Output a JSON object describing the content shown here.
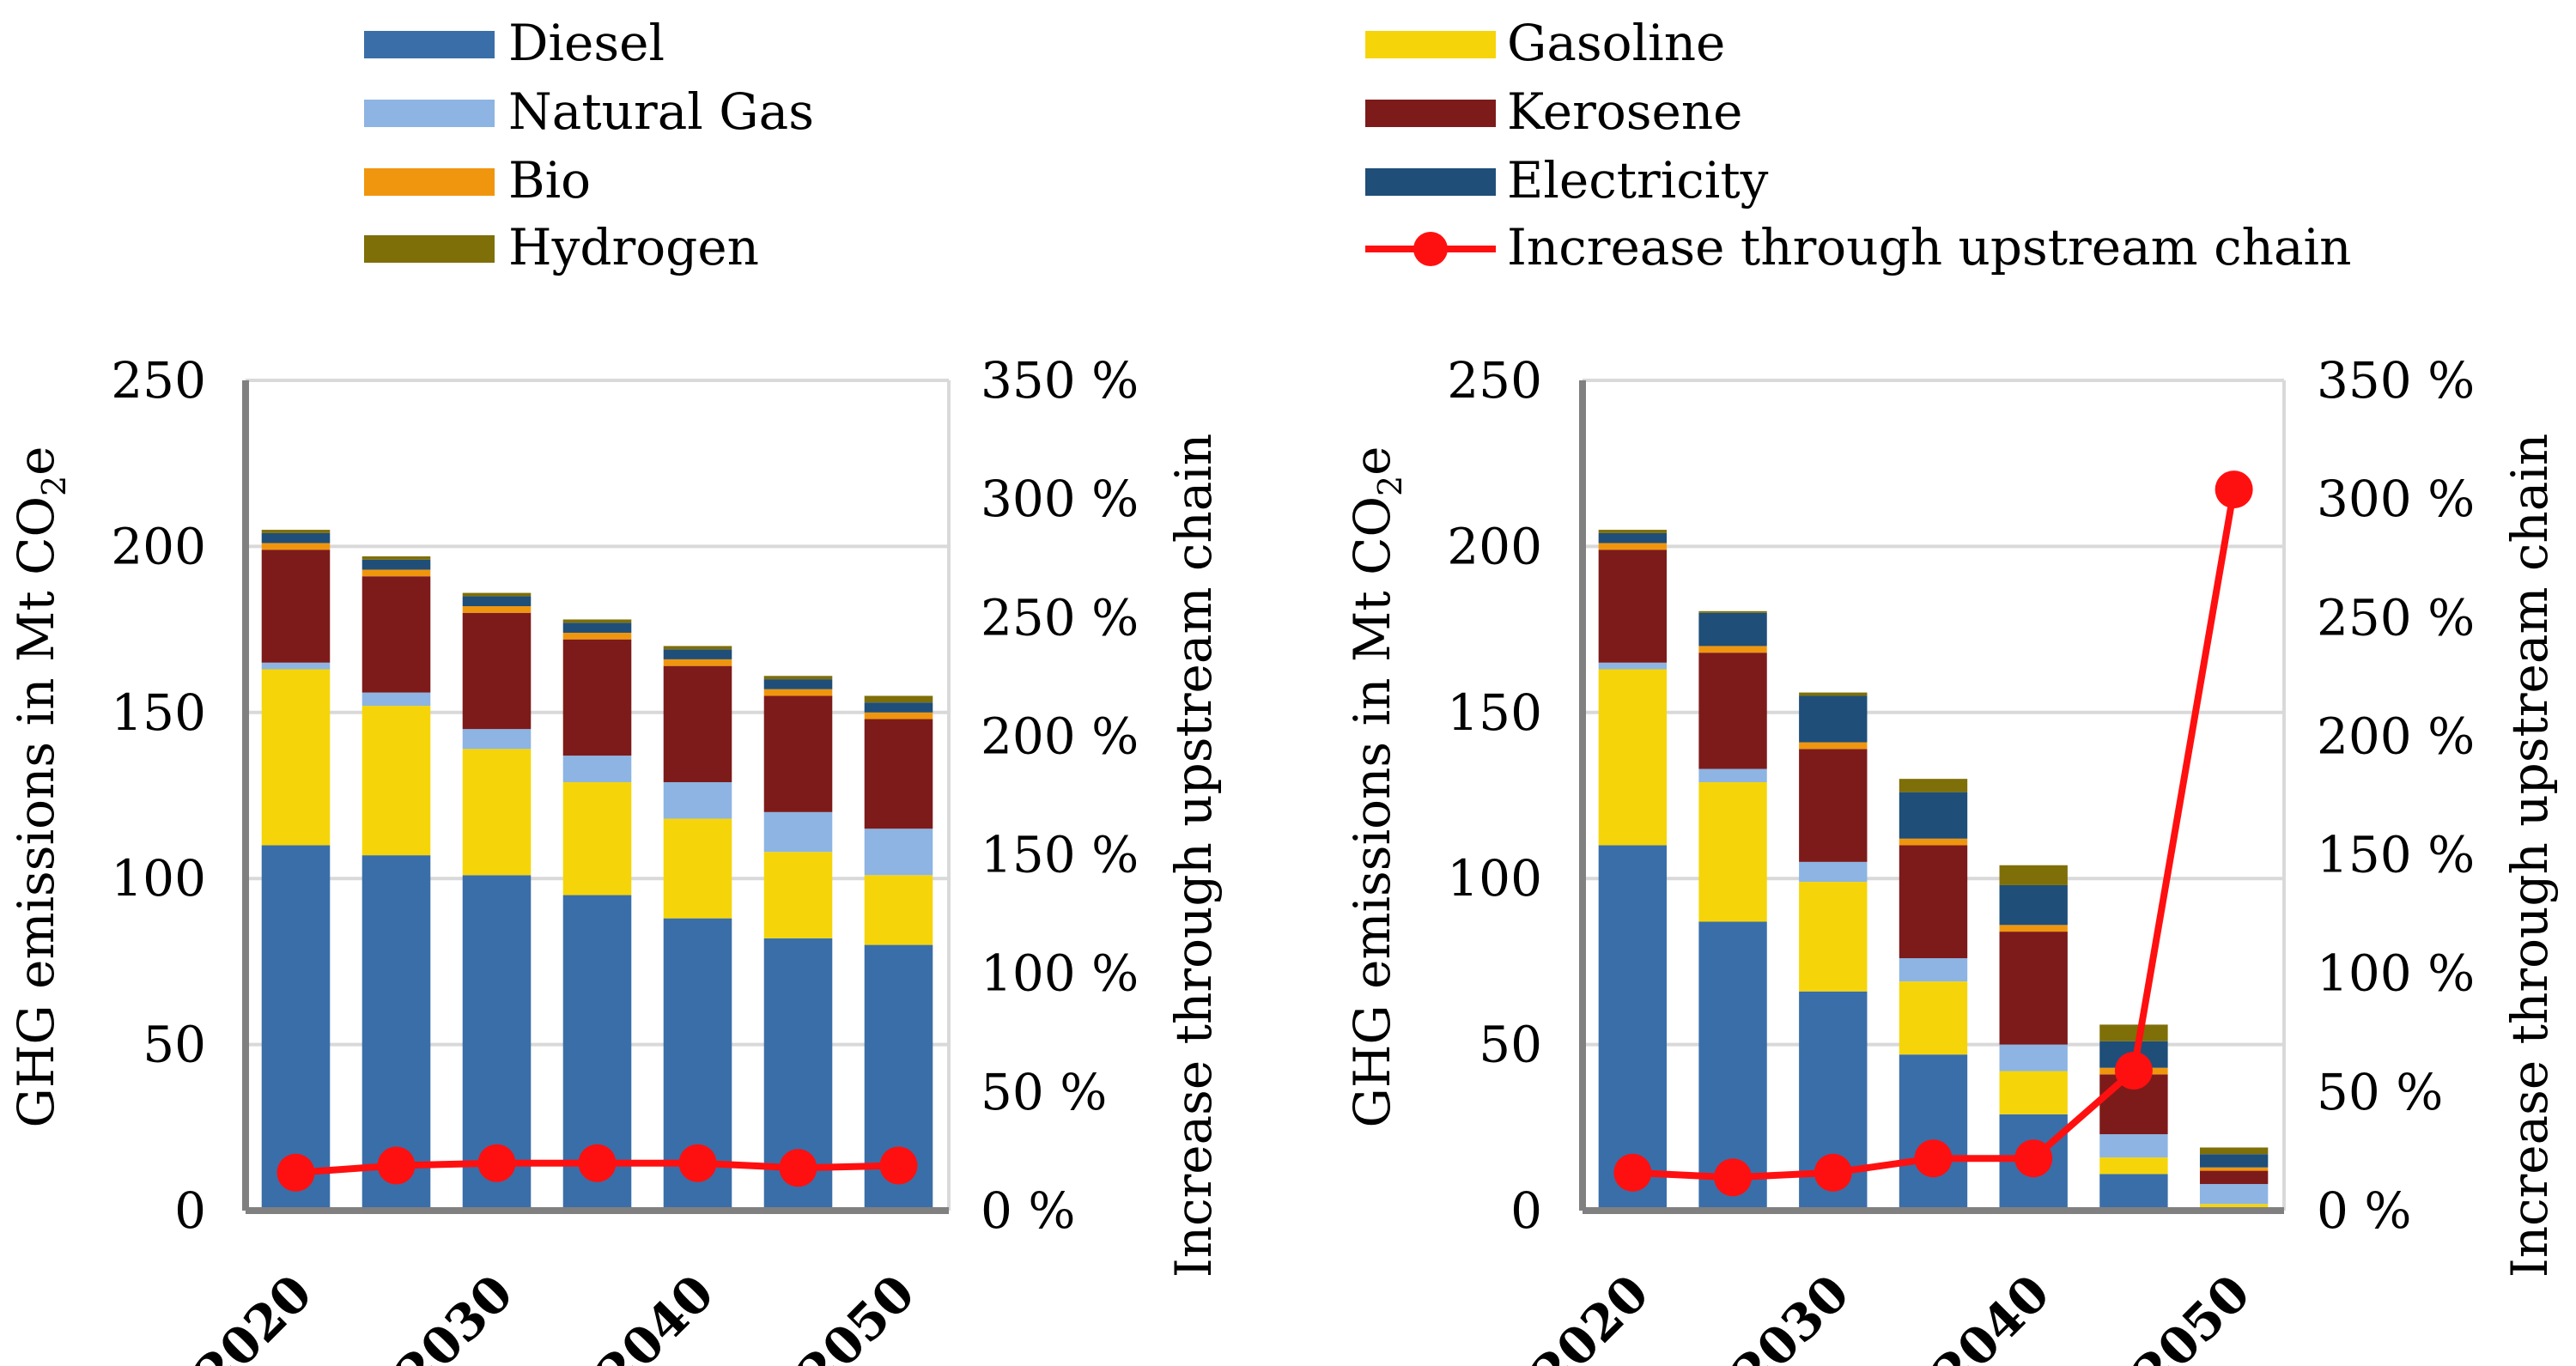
{
  "legend": {
    "entries": [
      {
        "name": "Diesel",
        "color": "#3a6ea8",
        "kind": "bar"
      },
      {
        "name": "Natural Gas",
        "color": "#8db4e2",
        "kind": "bar"
      },
      {
        "name": "Bio",
        "color": "#f0960e",
        "kind": "bar"
      },
      {
        "name": "Hydrogen",
        "color": "#7e6f08",
        "kind": "bar"
      },
      {
        "name": "Gasoline",
        "color": "#f5d50a",
        "kind": "bar"
      },
      {
        "name": "Kerosene",
        "color": "#7d1b1b",
        "kind": "bar"
      },
      {
        "name": "Electricity",
        "color": "#1f4e79",
        "kind": "bar"
      },
      {
        "name": "Increase through upstream chain",
        "color": "#ff1010",
        "kind": "line"
      }
    ]
  },
  "chart_data": [
    {
      "type": "bar",
      "stacked": true,
      "categories": [
        "2020",
        "2025",
        "2030",
        "2035",
        "2040",
        "2045",
        "2050"
      ],
      "tick_labels": [
        "2020",
        "",
        "2030",
        "",
        "2040",
        "",
        "2050"
      ],
      "ylabel_left": "GHG emissions in Mt CO",
      "ylabel_left_subscript": "2",
      "ylabel_left_suffix": "e",
      "ylabel_right": "Increase through upstream chain",
      "ylim_left": [
        0,
        250
      ],
      "yticks_left": [
        "0",
        "50",
        "100",
        "150",
        "200",
        "250"
      ],
      "ylim_right": [
        0,
        350
      ],
      "yticks_right": [
        "0 %",
        "50 %",
        "100 %",
        "150 %",
        "200 %",
        "250 %",
        "300 %",
        "350 %"
      ],
      "grid": true,
      "series": [
        {
          "name": "Diesel",
          "values": [
            110,
            107,
            101,
            95,
            88,
            82,
            80
          ]
        },
        {
          "name": "Gasoline",
          "values": [
            53,
            45,
            38,
            34,
            30,
            26,
            21
          ]
        },
        {
          "name": "Natural Gas",
          "values": [
            2,
            4,
            6,
            8,
            11,
            12,
            14
          ]
        },
        {
          "name": "Kerosene",
          "values": [
            34,
            35,
            35,
            35,
            35,
            35,
            33
          ]
        },
        {
          "name": "Bio",
          "values": [
            2,
            2,
            2,
            2,
            2,
            2,
            2
          ]
        },
        {
          "name": "Electricity",
          "values": [
            3,
            3,
            3,
            3,
            3,
            3,
            3
          ]
        },
        {
          "name": "Hydrogen",
          "values": [
            1,
            1,
            1,
            1,
            1,
            1,
            2
          ]
        }
      ],
      "line": {
        "name": "Increase through upstream chain",
        "values": [
          16,
          19,
          20,
          20,
          20,
          18,
          19
        ]
      }
    },
    {
      "type": "bar",
      "stacked": true,
      "categories": [
        "2020",
        "2025",
        "2030",
        "2035",
        "2040",
        "2045",
        "2050"
      ],
      "tick_labels": [
        "2020",
        "",
        "2030",
        "",
        "2040",
        "",
        "2050"
      ],
      "ylabel_left": "GHG emissions in Mt CO",
      "ylabel_left_subscript": "2",
      "ylabel_left_suffix": "e",
      "ylabel_right": "Increase through upstream chain",
      "ylim_left": [
        0,
        250
      ],
      "yticks_left": [
        "0",
        "50",
        "100",
        "150",
        "200",
        "250"
      ],
      "ylim_right": [
        0,
        350
      ],
      "yticks_right": [
        "0 %",
        "50 %",
        "100 %",
        "150 %",
        "200 %",
        "250 %",
        "300 %",
        "350 %"
      ],
      "grid": true,
      "series": [
        {
          "name": "Diesel",
          "values": [
            110,
            87,
            66,
            47,
            29,
            11,
            1
          ]
        },
        {
          "name": "Gasoline",
          "values": [
            53,
            42,
            33,
            22,
            13,
            5,
            1
          ]
        },
        {
          "name": "Natural Gas",
          "values": [
            2,
            4,
            6,
            7,
            8,
            7,
            6
          ]
        },
        {
          "name": "Kerosene",
          "values": [
            34,
            35,
            34,
            34,
            34,
            18,
            4
          ]
        },
        {
          "name": "Bio",
          "values": [
            2,
            2,
            2,
            2,
            2,
            2,
            1
          ]
        },
        {
          "name": "Electricity",
          "values": [
            3,
            10,
            14,
            14,
            12,
            8,
            4
          ]
        },
        {
          "name": "Hydrogen",
          "values": [
            1,
            0.5,
            1,
            4,
            6,
            5,
            2
          ]
        }
      ],
      "line": {
        "name": "Increase through upstream chain",
        "values": [
          16,
          14,
          16,
          22,
          22,
          59,
          304
        ]
      }
    }
  ]
}
